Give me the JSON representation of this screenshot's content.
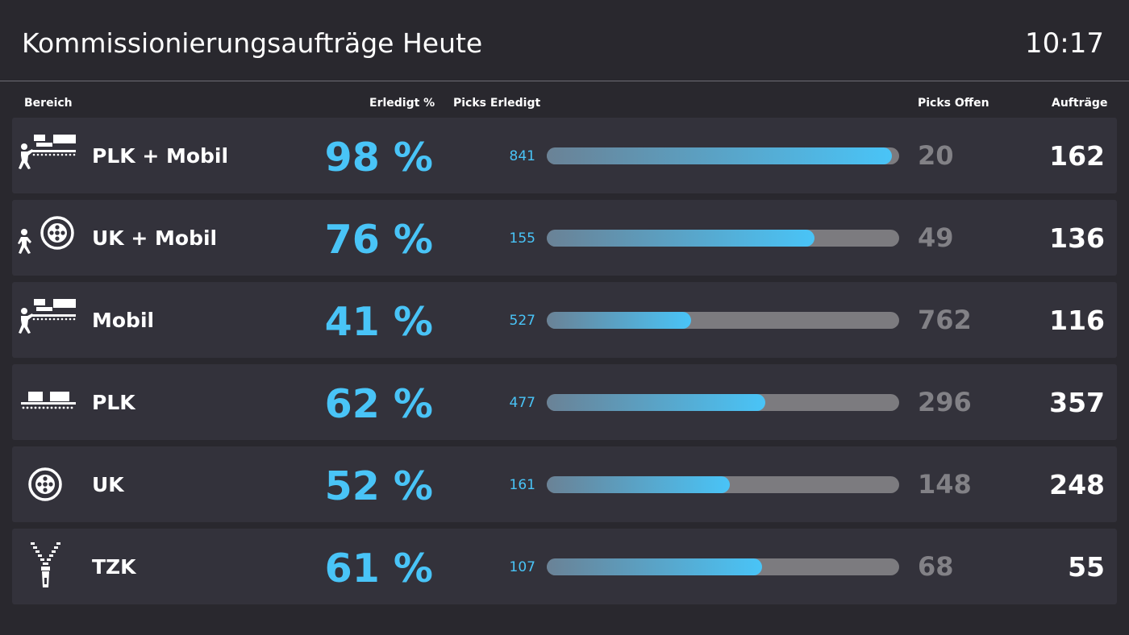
{
  "header": {
    "title": "Kommissionierungsaufträge Heute",
    "clock": "10:17"
  },
  "columns": {
    "area": "Bereich",
    "done_pct": "Erledigt %",
    "picks_done": "Picks Erledigt",
    "picks_open": "Picks Offen",
    "orders": "Aufträge"
  },
  "colors": {
    "background": "#29282e",
    "row_background": "#33323b",
    "accent": "#49c4f7",
    "muted": "#828186",
    "bar_track": "#7c7b7f"
  },
  "rows": [
    {
      "icon": "person-conveyor-icon",
      "name": "PLK + Mobil",
      "pct": "98 %",
      "progress": 0.98,
      "picks_done": "841",
      "picks_open": "20",
      "orders": "162"
    },
    {
      "icon": "person-wheel-icon",
      "name": "UK + Mobil",
      "pct": "76 %",
      "progress": 0.76,
      "picks_done": "155",
      "picks_open": "49",
      "orders": "136"
    },
    {
      "icon": "person-conveyor-icon",
      "name": "Mobil",
      "pct": "41 %",
      "progress": 0.41,
      "picks_done": "527",
      "picks_open": "762",
      "orders": "116"
    },
    {
      "icon": "conveyor-icon",
      "name": "PLK",
      "pct": "62 %",
      "progress": 0.62,
      "picks_done": "477",
      "picks_open": "296",
      "orders": "357"
    },
    {
      "icon": "wheel-icon",
      "name": "UK",
      "pct": "52 %",
      "progress": 0.52,
      "picks_done": "161",
      "picks_open": "148",
      "orders": "248"
    },
    {
      "icon": "zipper-icon",
      "name": "TZK",
      "pct": "61 %",
      "progress": 0.61,
      "picks_done": "107",
      "picks_open": "68",
      "orders": "55"
    }
  ]
}
